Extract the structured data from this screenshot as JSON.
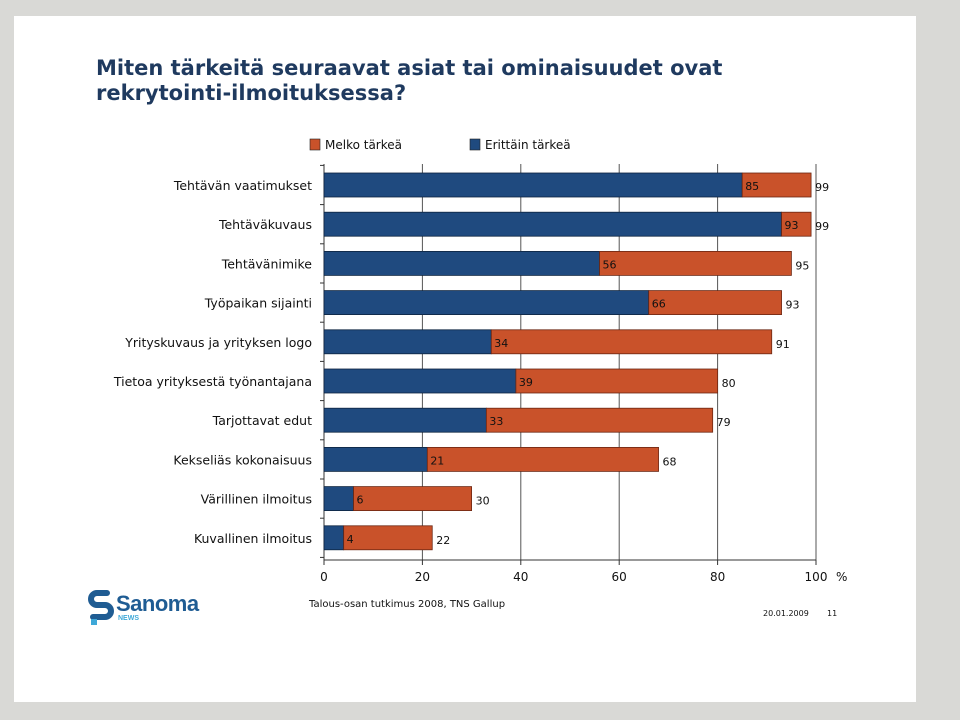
{
  "slide": {
    "title_line1": "Miten tärkeitä seuraavat asiat tai ominaisuudet ovat",
    "title_line2": "rekrytointi-ilmoituksessa?",
    "source": "Talous-osan tutkimus 2008, TNS Gallup",
    "date": "20.01.2009",
    "page": "11",
    "logo": {
      "name": "Sanoma",
      "sub": "NEWS",
      "color": "#1f5c93",
      "sub_color": "#3ea8d8"
    }
  },
  "chart_data": {
    "type": "bar",
    "orientation": "horizontal",
    "stacked": true,
    "categories": [
      "Tehtävän vaatimukset",
      "Tehtäväkuvaus",
      "Tehtävänimike",
      "Työpaikan sijainti",
      "Yrityskuvaus ja yrityksen logo",
      "Tietoa yrityksestä työnantajana",
      "Tarjottavat edut",
      "Kekseliäs kokonaisuus",
      "Värillinen ilmoitus",
      "Kuvallinen ilmoitus"
    ],
    "series": [
      {
        "name": "Erittäin tärkeä",
        "color": "#1f4a7f",
        "values": [
          85,
          93,
          56,
          66,
          34,
          39,
          33,
          21,
          6,
          4
        ]
      },
      {
        "name": "Melko tärkeä",
        "color": "#c9522a",
        "values": [
          14,
          6,
          39,
          27,
          57,
          41,
          46,
          47,
          24,
          18
        ]
      }
    ],
    "totals": [
      99,
      99,
      95,
      93,
      91,
      80,
      79,
      68,
      30,
      22
    ],
    "legend": [
      {
        "name": "Melko tärkeä",
        "color": "#c9522a"
      },
      {
        "name": "Erittäin tärkeä",
        "color": "#1f4a7f"
      }
    ],
    "legend_position": "top",
    "xlim": [
      0,
      100
    ],
    "xticks": [
      "0",
      "20",
      "40",
      "60",
      "80",
      "100"
    ],
    "xunit": "%",
    "grid": true
  }
}
